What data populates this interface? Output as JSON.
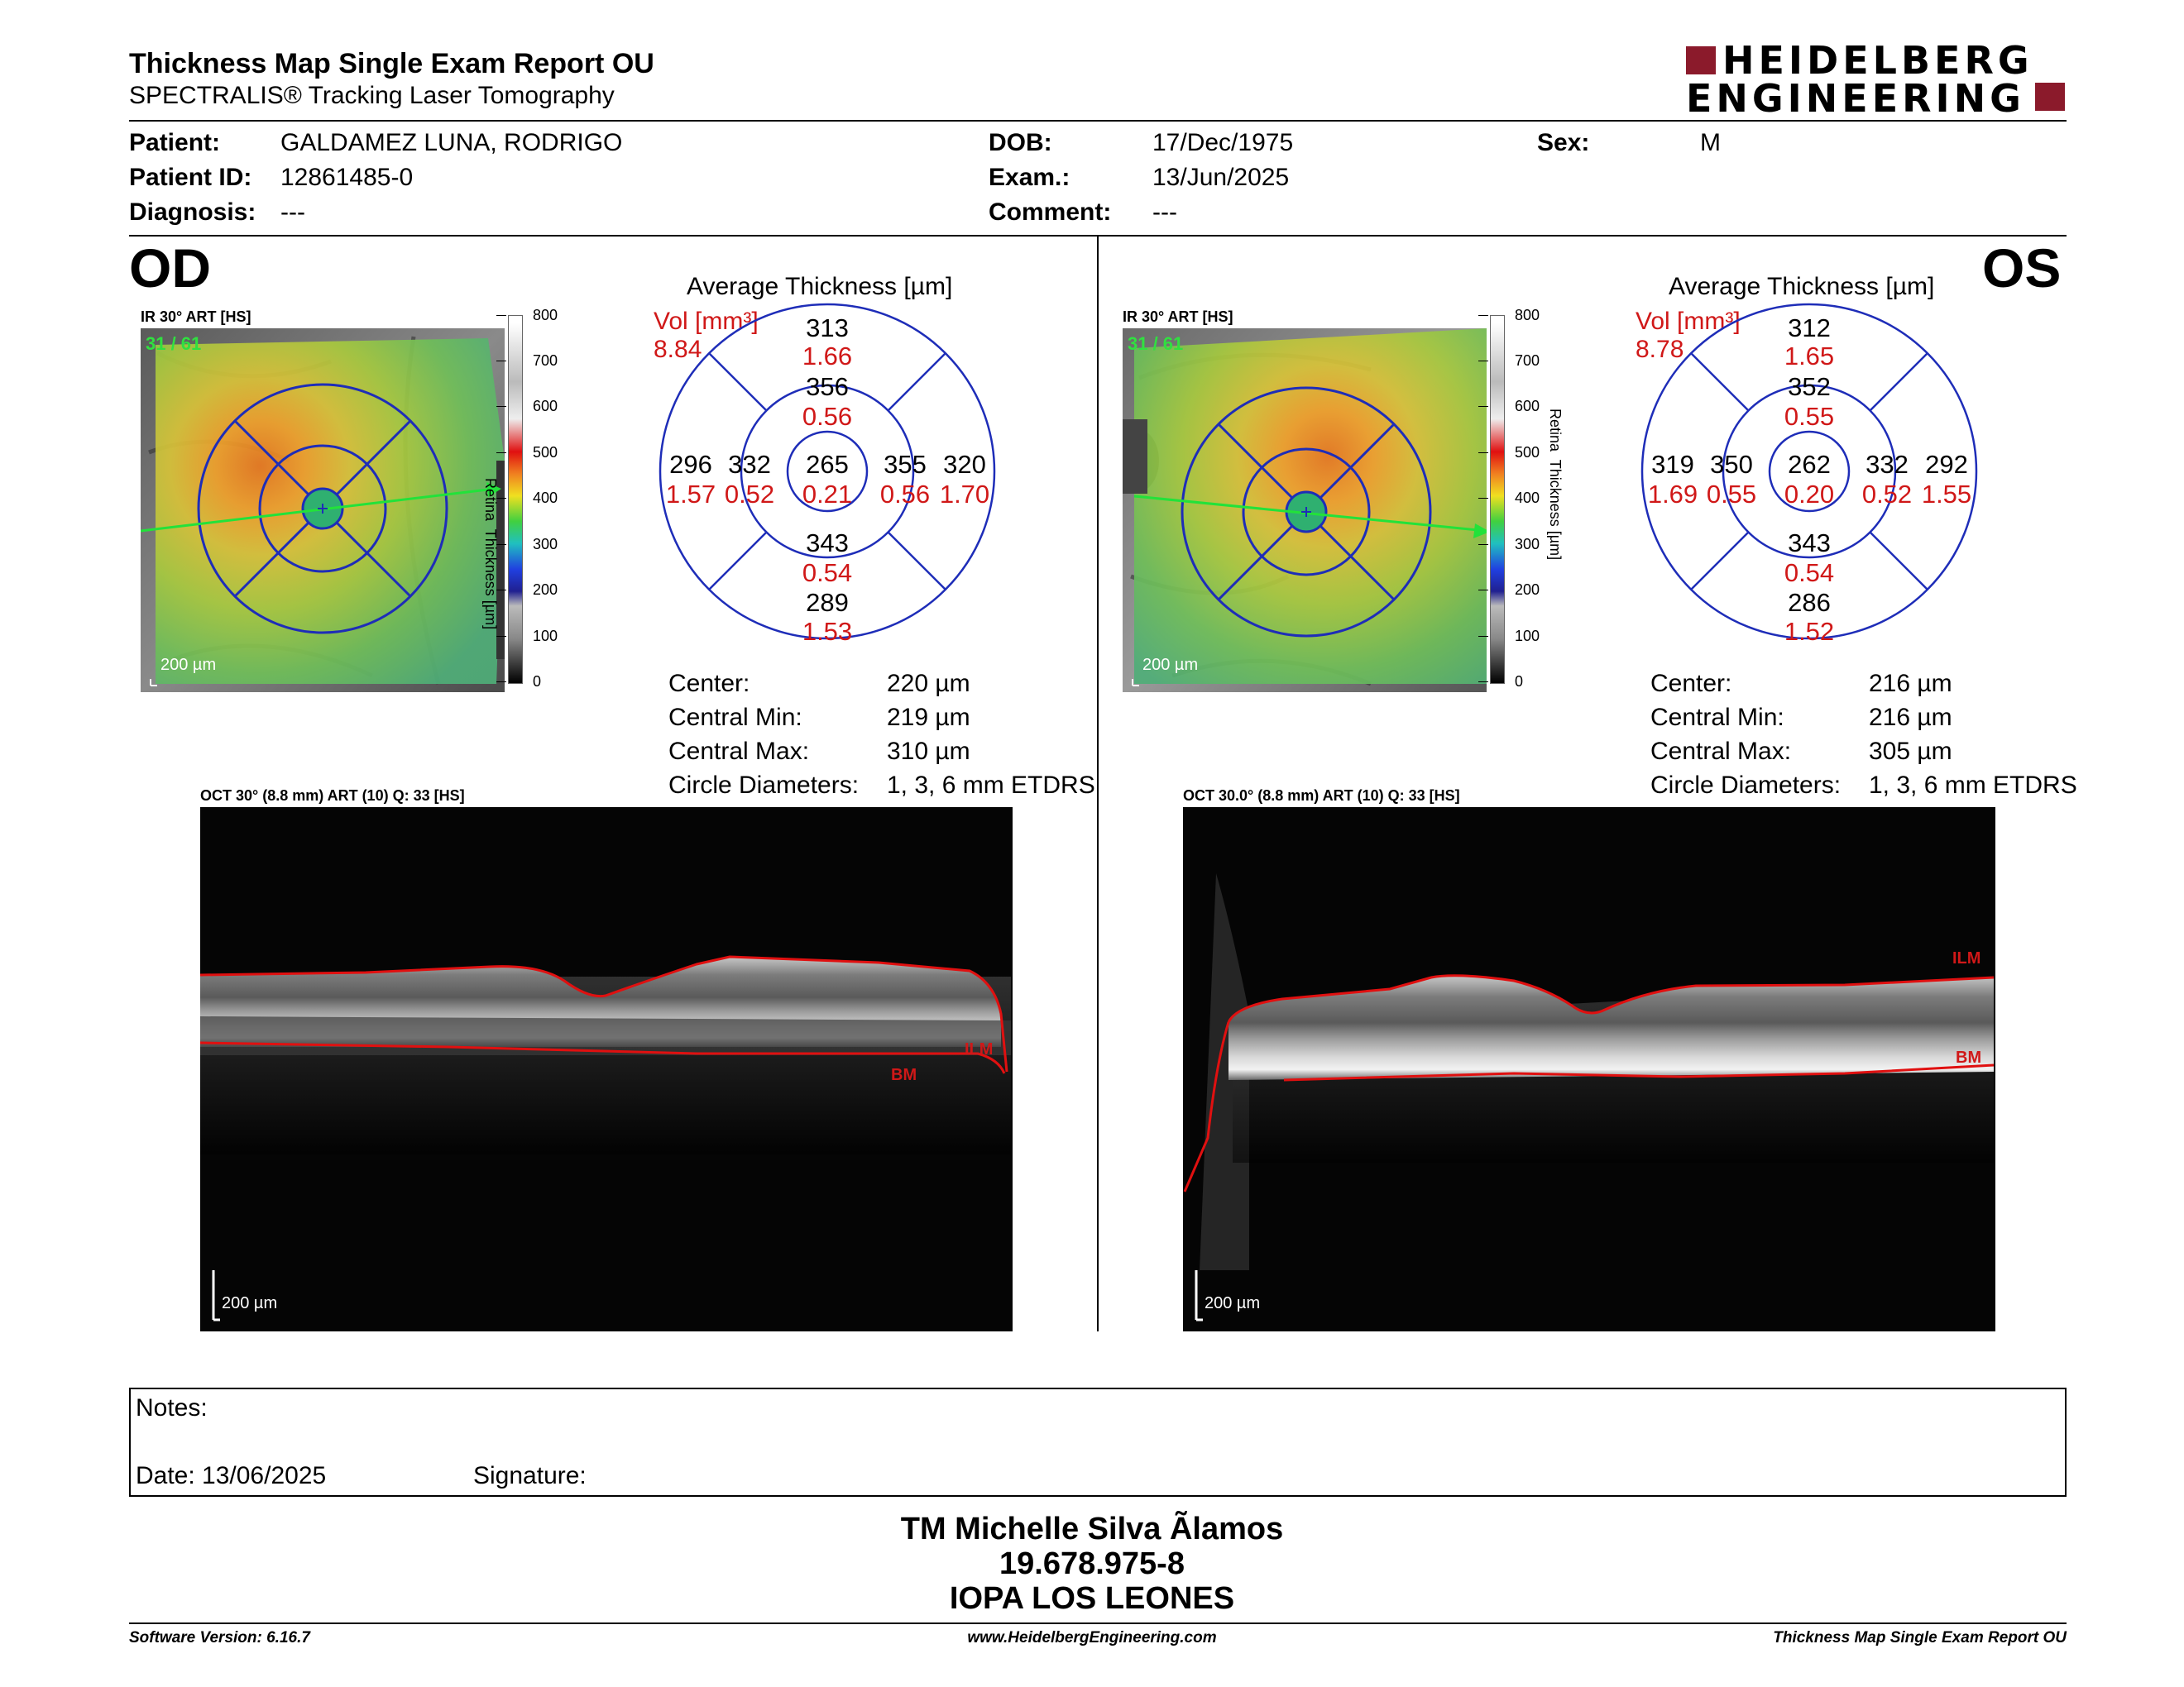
{
  "header": {
    "title": "Thickness Map Single Exam Report OU",
    "subtitle": "SPECTRALIS® Tracking Laser Tomography",
    "logo_line1": "HEIDELBERG",
    "logo_line2": "ENGINEERING",
    "brand_color": "#8b1a2b"
  },
  "patient": {
    "patient_label": "Patient:",
    "patient_value": "GALDAMEZ LUNA, RODRIGO",
    "id_label": "Patient ID:",
    "id_value": "12861485-0",
    "diagnosis_label": "Diagnosis:",
    "diagnosis_value": "---",
    "dob_label": "DOB:",
    "dob_value": "17/Dec/1975",
    "exam_label": "Exam.:",
    "exam_value": "13/Jun/2025",
    "comment_label": "Comment:",
    "comment_value": "---",
    "sex_label": "Sex:",
    "sex_value": "M"
  },
  "od": {
    "eye": "OD",
    "ir_label": "IR 30° ART [HS]",
    "ir_counter": "31 / 61",
    "scalebar": "200 µm",
    "avg_title": "Average Thickness [µm]",
    "vol_label": "Vol [mm³]",
    "vol_total": "8.84",
    "grid": {
      "center_t": "265",
      "center_v": "0.21",
      "inner_sup_t": "356",
      "inner_sup_v": "0.56",
      "inner_inf_t": "343",
      "inner_inf_v": "0.54",
      "inner_left_t": "332",
      "inner_left_v": "0.52",
      "inner_right_t": "355",
      "inner_right_v": "0.56",
      "outer_sup_t": "313",
      "outer_sup_v": "1.66",
      "outer_inf_t": "289",
      "outer_inf_v": "1.53",
      "outer_left_t": "296",
      "outer_left_v": "1.57",
      "outer_right_t": "320",
      "outer_right_v": "1.70"
    },
    "stats": {
      "center_label": "Center:",
      "center_value": "220 µm",
      "min_label": "Central Min:",
      "min_value": "219 µm",
      "max_label": "Central Max:",
      "max_value": "310 µm",
      "circ_label": "Circle Diameters:",
      "circ_value": "1, 3, 6 mm ETDRS"
    },
    "oct_label": "OCT 30° (8.8 mm) ART (10) Q: 33 [HS]",
    "oct_scalebar": "200 µm",
    "ilm": "ILM",
    "bm": "BM"
  },
  "os": {
    "eye": "OS",
    "ir_label": "IR 30° ART [HS]",
    "ir_counter": "31 / 61",
    "scalebar": "200 µm",
    "avg_title": "Average Thickness [µm]",
    "vol_label": "Vol [mm³]",
    "vol_total": "8.78",
    "grid": {
      "center_t": "262",
      "center_v": "0.20",
      "inner_sup_t": "352",
      "inner_sup_v": "0.55",
      "inner_inf_t": "343",
      "inner_inf_v": "0.54",
      "inner_left_t": "350",
      "inner_left_v": "0.55",
      "inner_right_t": "332",
      "inner_right_v": "0.52",
      "outer_sup_t": "312",
      "outer_sup_v": "1.65",
      "outer_inf_t": "286",
      "outer_inf_v": "1.52",
      "outer_left_t": "319",
      "outer_left_v": "1.69",
      "outer_right_t": "292",
      "outer_right_v": "1.55"
    },
    "stats": {
      "center_label": "Center:",
      "center_value": "216 µm",
      "min_label": "Central Min:",
      "min_value": "216 µm",
      "max_label": "Central Max:",
      "max_value": "305 µm",
      "circ_label": "Circle Diameters:",
      "circ_value": "1, 3, 6 mm ETDRS"
    },
    "oct_label": "OCT 30.0° (8.8 mm) ART (10) Q: 33 [HS]",
    "oct_scalebar": "200 µm",
    "ilm": "ILM",
    "bm": "BM"
  },
  "colorbar": {
    "ticks": [
      "800",
      "700",
      "600",
      "500",
      "400",
      "300",
      "200",
      "100",
      "0"
    ],
    "axis_label": "Retina  Thickness [µm]"
  },
  "notes": {
    "notes_label": "Notes:",
    "date_label": "Date: 13/06/2025",
    "signature_label": "Signature:"
  },
  "signer": {
    "name": "TM Michelle Silva Ãlamos",
    "id": "19.678.975-8",
    "org": "IOPA LOS LEONES"
  },
  "footer": {
    "software": "Software Version: 6.16.7",
    "website": "www.HeidelbergEngineering.com",
    "report": "Thickness Map Single Exam Report OU"
  }
}
